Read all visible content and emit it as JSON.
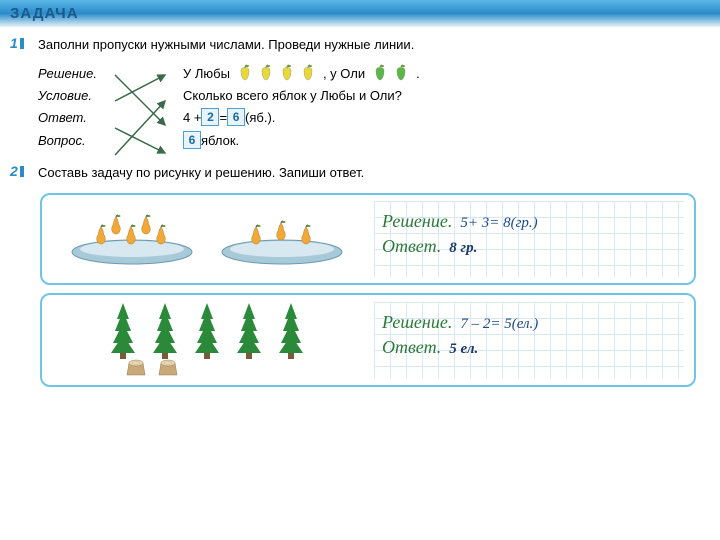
{
  "header": "ЗАДАЧА",
  "task1": {
    "num": "1",
    "text": "Заполни пропуски нужными числами. Проведи нужные линии.",
    "rows": {
      "reshenie_label": "Решение.",
      "reshenie_text1": "У Любы",
      "reshenie_text2": ",  у Оли",
      "reshenie_text3": ".",
      "uslovie_label": "Условие.",
      "uslovie_text": "Сколько всего яблок у Любы и Оли?",
      "otvet_label": "Ответ.",
      "otvet_pre": "4 + ",
      "otvet_box1": "2",
      "otvet_mid": " = ",
      "otvet_box2": "6",
      "otvet_post": " (яб.).",
      "vopros_label": "Вопрос.",
      "vopros_box": "6",
      "vopros_post": " яблок."
    },
    "apples": {
      "yellow_count": 4,
      "green_count": 2,
      "yellow_color": "#e8d838",
      "green_color": "#5ab848",
      "leaf_color": "#6a9a3a"
    }
  },
  "task2": {
    "num": "2",
    "text": "Составь задачу по рисунку и решению. Запиши ответ."
  },
  "panel_pears": {
    "reshenie_label": "Решение.",
    "equation": "5+ 3= 8(гр.)",
    "otvet_label": "Ответ.",
    "answer": "8 гр.",
    "pear_color": "#f0a838",
    "pear_counts": [
      5,
      3
    ],
    "plate_color": "#a8cad8"
  },
  "panel_trees": {
    "reshenie_label": "Решение.",
    "equation": "7 – 2= 5(ел.)",
    "otvet_label": "Ответ.",
    "answer": "5 ел.",
    "tree_color": "#2a8a3a",
    "trunk_color": "#7a5a3a",
    "stump_color": "#c8a878",
    "tree_count": 5,
    "stump_count": 2
  },
  "colors": {
    "header_text": "#1a5a8a",
    "accent": "#2a8bc9",
    "box_border": "#4aa0d8",
    "box_bg": "#e8f4fa",
    "panel_border": "#6fc4e8",
    "cursive": "#2a7a3a",
    "handwriting": "#1a4a8a",
    "arrow": "#3a6a4a"
  }
}
